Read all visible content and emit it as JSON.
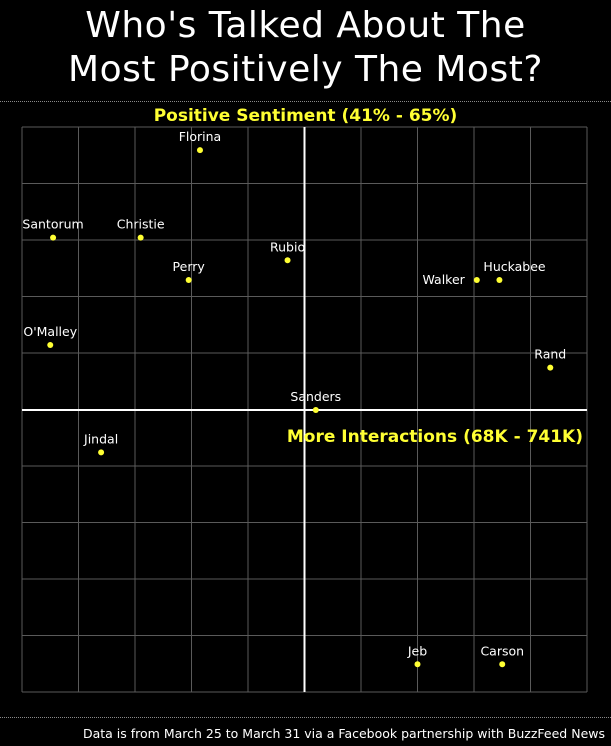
{
  "title_line1": "Who's Talked About The",
  "title_line2": "Most Positively The Most?",
  "footer": "Data is from March 25 to March 31 via a Facebook partnership with BuzzFeed News",
  "colors": {
    "background": "#000000",
    "accent": "#ffff33",
    "grid": "#5a5a5a",
    "axis": "#ffffff",
    "point": "#ffff33",
    "text": "#ffffff"
  },
  "chart_data": {
    "type": "scatter",
    "ylabel": "Positive Sentiment (41% - 65%)",
    "xlabel": "More Interactions (68K - 741K)",
    "x_range": [
      0,
      10
    ],
    "y_range": [
      -4.8,
      5
    ],
    "grid": true,
    "points": [
      {
        "name": "Florina",
        "x": 3.15,
        "y": 4.6,
        "label_pos": "above"
      },
      {
        "name": "Santorum",
        "x": 0.55,
        "y": 3.05,
        "label_pos": "above"
      },
      {
        "name": "Christie",
        "x": 2.1,
        "y": 3.05,
        "label_pos": "above"
      },
      {
        "name": "Rubio",
        "x": 4.7,
        "y": 2.65,
        "label_pos": "above"
      },
      {
        "name": "Perry",
        "x": 2.95,
        "y": 2.3,
        "label_pos": "above"
      },
      {
        "name": "Walker",
        "x": 8.05,
        "y": 2.3,
        "label_pos": "left"
      },
      {
        "name": "Huckabee",
        "x": 8.45,
        "y": 2.3,
        "label_pos": "above-right"
      },
      {
        "name": "O'Malley",
        "x": 0.5,
        "y": 1.15,
        "label_pos": "above"
      },
      {
        "name": "Rand",
        "x": 9.35,
        "y": 0.75,
        "label_pos": "above"
      },
      {
        "name": "Sanders",
        "x": 5.2,
        "y": 0.0,
        "label_pos": "above"
      },
      {
        "name": "Jindal",
        "x": 1.4,
        "y": -0.75,
        "label_pos": "above"
      },
      {
        "name": "Jeb",
        "x": 7.0,
        "y": -4.5,
        "label_pos": "above"
      },
      {
        "name": "Carson",
        "x": 8.5,
        "y": -4.5,
        "label_pos": "above"
      }
    ]
  }
}
